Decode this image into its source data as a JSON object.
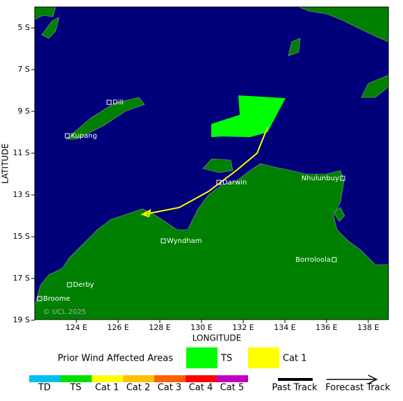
{
  "map": {
    "y_axis_title": "LATITUDE",
    "x_axis_title": "LONGITUDE",
    "lat_labels": [
      "5 S",
      "7 S",
      "9 S",
      "11 S",
      "13 S",
      "15 S",
      "17 S",
      "19 S"
    ],
    "lon_labels": [
      "124 E",
      "126 E",
      "128 E",
      "130 E",
      "132 E",
      "134 E",
      "136 E",
      "138 E"
    ],
    "places": [
      "Dili",
      "Kupang",
      "Darwin",
      "Nhulunbuy",
      "Wyndham",
      "Borroloola",
      "Derby",
      "Broome"
    ],
    "copyright": "© UCL 2025"
  },
  "legend": {
    "wind_title": "Prior Wind Affected Areas",
    "wind_items": [
      "TS",
      "Cat 1"
    ],
    "scale": [
      "TD",
      "TS",
      "Cat 1",
      "Cat 2",
      "Cat 3",
      "Cat 4",
      "Cat 5"
    ],
    "past_track": "Past Track",
    "forecast_track": "Forecast Track"
  }
}
